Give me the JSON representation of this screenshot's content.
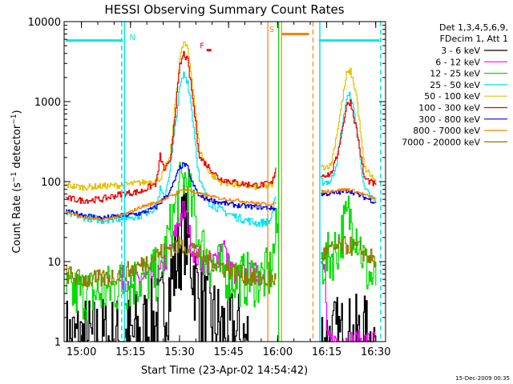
{
  "chart_data": {
    "type": "line",
    "title": "HESSI Observing Summary Count Rates",
    "xlabel": "Start Time (23-Apr-02 14:54:42)",
    "ylabel": "Count Rate (s⁻¹ detector⁻¹)",
    "ylabel_parts": [
      "Count Rate (s",
      "−1",
      " detector",
      "−1",
      ")"
    ],
    "xlim": [
      14.9117,
      16.55
    ],
    "ylim": [
      1,
      10000
    ],
    "yscale": "log",
    "x_ticks": [
      {
        "value": 15.0,
        "label": "15:00"
      },
      {
        "value": 15.25,
        "label": "15:15"
      },
      {
        "value": 15.5,
        "label": "15:30"
      },
      {
        "value": 15.75,
        "label": "15:45"
      },
      {
        "value": 16.0,
        "label": "16:00"
      },
      {
        "value": 16.25,
        "label": "16:15"
      },
      {
        "value": 16.5,
        "label": "16:30"
      }
    ],
    "y_ticks": [
      {
        "value": 1,
        "label": "1"
      },
      {
        "value": 10,
        "label": "10"
      },
      {
        "value": 100,
        "label": "100"
      },
      {
        "value": 1000,
        "label": "1000"
      },
      {
        "value": 10000,
        "label": "10000"
      }
    ],
    "legend_header": [
      "Det 1,3,4,5,6,9,",
      "FDecim 1, Att 1"
    ],
    "legend_placement": "right of plot, top",
    "grid": false,
    "series": [
      {
        "name": "3 - 6 keV",
        "color": "#000000",
        "noise": 0.6,
        "segments": [
          [
            [
              14.92,
              1
            ],
            [
              15.2,
              1
            ],
            [
              15.3,
              1.2
            ],
            [
              15.4,
              2
            ],
            [
              15.45,
              5
            ],
            [
              15.5,
              15
            ],
            [
              15.52,
              28
            ],
            [
              15.54,
              20
            ],
            [
              15.56,
              10
            ],
            [
              15.6,
              3
            ],
            [
              15.65,
              2
            ],
            [
              15.7,
              1.5
            ],
            [
              15.78,
              1.2
            ],
            [
              15.85,
              1
            ]
          ],
          [
            [
              16.22,
              1
            ],
            [
              16.35,
              1
            ],
            [
              16.5,
              1
            ]
          ]
        ]
      },
      {
        "name": "6 - 12 keV",
        "color": "#ff00ff",
        "noise": 0.15,
        "segments": [
          [
            [
              15.2,
              6
            ],
            [
              15.3,
              6
            ],
            [
              15.4,
              7
            ],
            [
              15.45,
              14
            ],
            [
              15.5,
              35
            ],
            [
              15.52,
              45
            ],
            [
              15.54,
              30
            ],
            [
              15.56,
              15
            ],
            [
              15.6,
              10
            ],
            [
              15.65,
              9
            ],
            [
              15.7,
              12
            ],
            [
              15.72,
              20
            ],
            [
              15.74,
              10
            ],
            [
              15.78,
              7
            ],
            [
              15.85,
              7
            ],
            [
              15.96,
              7
            ]
          ],
          [
            [
              16.22,
              8
            ],
            [
              16.24,
              8
            ],
            [
              16.25,
              1
            ],
            [
              16.5,
              1
            ]
          ]
        ]
      },
      {
        "name": "12 - 25 keV",
        "color": "#00dd00",
        "noise": 0.35,
        "segments": [
          [
            [
              14.92,
              4
            ],
            [
              15.1,
              4
            ],
            [
              15.2,
              5
            ],
            [
              15.3,
              6
            ],
            [
              15.4,
              7
            ],
            [
              15.45,
              25
            ],
            [
              15.5,
              80
            ],
            [
              15.52,
              110
            ],
            [
              15.54,
              90
            ],
            [
              15.56,
              50
            ],
            [
              15.6,
              18
            ],
            [
              15.65,
              10
            ],
            [
              15.7,
              8
            ],
            [
              15.8,
              6
            ],
            [
              15.9,
              6
            ],
            [
              15.96,
              7
            ],
            [
              16.0,
              30
            ]
          ],
          [
            [
              16.22,
              10
            ],
            [
              16.25,
              10
            ],
            [
              16.3,
              15
            ],
            [
              16.36,
              38
            ],
            [
              16.4,
              25
            ],
            [
              16.45,
              8
            ],
            [
              16.5,
              5
            ]
          ]
        ]
      },
      {
        "name": "25 - 50 keV",
        "color": "#00e5ee",
        "noise": 0.05,
        "segments": [
          [
            [
              14.92,
              40
            ],
            [
              15.1,
              33
            ],
            [
              15.3,
              38
            ],
            [
              15.38,
              48
            ],
            [
              15.4,
              80
            ],
            [
              15.42,
              60
            ],
            [
              15.45,
              140
            ],
            [
              15.5,
              1500
            ],
            [
              15.52,
              2200
            ],
            [
              15.54,
              1800
            ],
            [
              15.56,
              800
            ],
            [
              15.6,
              100
            ],
            [
              15.65,
              55
            ],
            [
              15.7,
              45
            ],
            [
              15.8,
              35
            ],
            [
              15.9,
              30
            ],
            [
              15.96,
              32
            ],
            [
              15.99,
              65
            ]
          ],
          [
            [
              16.22,
              100
            ],
            [
              16.27,
              100
            ],
            [
              16.3,
              180
            ],
            [
              16.35,
              1100
            ],
            [
              16.37,
              1200
            ],
            [
              16.4,
              500
            ],
            [
              16.44,
              80
            ],
            [
              16.5,
              55
            ]
          ]
        ]
      },
      {
        "name": "50 - 100 keV",
        "color": "#e5c000",
        "noise": 0.04,
        "segments": [
          [
            [
              14.92,
              90
            ],
            [
              15.0,
              85
            ],
            [
              15.2,
              90
            ],
            [
              15.35,
              100
            ],
            [
              15.4,
              110
            ],
            [
              15.45,
              200
            ],
            [
              15.5,
              3500
            ],
            [
              15.52,
              5500
            ],
            [
              15.54,
              4500
            ],
            [
              15.56,
              2000
            ],
            [
              15.6,
              250
            ],
            [
              15.65,
              130
            ],
            [
              15.7,
              100
            ],
            [
              15.8,
              90
            ],
            [
              15.9,
              85
            ],
            [
              15.97,
              90
            ],
            [
              15.99,
              140
            ]
          ],
          [
            [
              16.22,
              150
            ],
            [
              16.27,
              160
            ],
            [
              16.3,
              400
            ],
            [
              16.35,
              2200
            ],
            [
              16.37,
              2400
            ],
            [
              16.4,
              1200
            ],
            [
              16.44,
              150
            ],
            [
              16.5,
              100
            ]
          ]
        ]
      },
      {
        "name": "100 - 300 keV",
        "color": "#ee0000",
        "noise": 0.04,
        "segments": [
          [
            [
              14.92,
              62
            ],
            [
              15.0,
              58
            ],
            [
              15.1,
              60
            ],
            [
              15.2,
              70
            ],
            [
              15.3,
              75
            ],
            [
              15.38,
              95
            ],
            [
              15.4,
              210
            ],
            [
              15.42,
              140
            ],
            [
              15.45,
              170
            ],
            [
              15.5,
              2800
            ],
            [
              15.52,
              4000
            ],
            [
              15.54,
              3200
            ],
            [
              15.56,
              1400
            ],
            [
              15.6,
              200
            ],
            [
              15.65,
              150
            ],
            [
              15.7,
              110
            ],
            [
              15.8,
              95
            ],
            [
              15.9,
              90
            ],
            [
              15.97,
              95
            ],
            [
              15.99,
              150
            ]
          ],
          [
            [
              16.22,
              120
            ],
            [
              16.27,
              125
            ],
            [
              16.3,
              200
            ],
            [
              16.35,
              900
            ],
            [
              16.37,
              1000
            ],
            [
              16.4,
              450
            ],
            [
              16.44,
              110
            ],
            [
              16.5,
              90
            ]
          ]
        ]
      },
      {
        "name": "300 - 800 keV",
        "color": "#0000ee",
        "noise": 0.03,
        "segments": [
          [
            [
              14.92,
              42
            ],
            [
              15.1,
              35
            ],
            [
              15.3,
              40
            ],
            [
              15.38,
              48
            ],
            [
              15.45,
              75
            ],
            [
              15.5,
              150
            ],
            [
              15.52,
              165
            ],
            [
              15.54,
              150
            ],
            [
              15.56,
              100
            ],
            [
              15.6,
              65
            ],
            [
              15.7,
              55
            ],
            [
              15.8,
              50
            ],
            [
              15.9,
              48
            ],
            [
              15.99,
              46
            ]
          ],
          [
            [
              16.22,
              70
            ],
            [
              16.3,
              72
            ],
            [
              16.36,
              78
            ],
            [
              16.4,
              70
            ],
            [
              16.5,
              55
            ]
          ]
        ]
      },
      {
        "name": "800 - 7000 keV",
        "color": "#ff8000",
        "noise": 0.02,
        "segments": [
          [
            [
              14.92,
              42
            ],
            [
              15.0,
              36
            ],
            [
              15.1,
              33
            ],
            [
              15.2,
              37
            ],
            [
              15.3,
              48
            ],
            [
              15.38,
              55
            ],
            [
              15.45,
              65
            ],
            [
              15.5,
              75
            ],
            [
              15.52,
              80
            ],
            [
              15.54,
              78
            ],
            [
              15.6,
              70
            ],
            [
              15.7,
              62
            ],
            [
              15.8,
              58
            ],
            [
              15.9,
              53
            ],
            [
              15.99,
              52
            ]
          ],
          [
            [
              16.22,
              75
            ],
            [
              16.3,
              78
            ],
            [
              16.36,
              80
            ],
            [
              16.42,
              72
            ],
            [
              16.5,
              60
            ]
          ]
        ]
      },
      {
        "name": "7000 - 20000 keV",
        "color": "#8b7d00",
        "noise": 0.12,
        "segments": [
          [
            [
              14.92,
              7
            ],
            [
              15.0,
              6
            ],
            [
              15.1,
              6
            ],
            [
              15.2,
              7
            ],
            [
              15.3,
              9
            ],
            [
              15.38,
              12
            ],
            [
              15.45,
              15
            ],
            [
              15.52,
              16
            ],
            [
              15.56,
              15
            ],
            [
              15.6,
              12
            ],
            [
              15.7,
              9
            ],
            [
              15.8,
              7
            ],
            [
              15.9,
              6
            ],
            [
              15.99,
              6
            ]
          ],
          [
            [
              16.22,
              12
            ],
            [
              16.3,
              15
            ],
            [
              16.36,
              16
            ],
            [
              16.42,
              14
            ],
            [
              16.5,
              10
            ]
          ]
        ]
      }
    ],
    "annotations": {
      "night_bars": [
        {
          "x0": 14.92,
          "x1": 15.21,
          "y": 5800,
          "color": "#00e5ee"
        },
        {
          "x0": 16.21,
          "x1": 16.52,
          "y": 5800,
          "color": "#00e5ee"
        }
      ],
      "saa_bar": {
        "x0": 16.02,
        "x1": 16.16,
        "y": 7000,
        "color": "#ff8000"
      },
      "markers": [
        {
          "text": "N",
          "x": 15.26,
          "y": 5900,
          "color": "#00e5ee"
        },
        {
          "text": "S",
          "x": 15.97,
          "y": 7400,
          "color": "#ff8000"
        },
        {
          "text": "F",
          "x": 15.615,
          "y": 4600,
          "color": "#ee0000"
        }
      ],
      "flare_tick": {
        "x": 15.65,
        "y": 4400,
        "color": "#ee0000"
      },
      "vlines": [
        {
          "x": 15.205,
          "style": "dashed",
          "color": "#00e5ee"
        },
        {
          "x": 15.22,
          "style": "solid",
          "color": "#00e5ee"
        },
        {
          "x": 16.215,
          "style": "solid",
          "color": "#00e5ee"
        },
        {
          "x": 16.525,
          "style": "dashed",
          "color": "#00e5ee"
        },
        {
          "x": 15.95,
          "style": "solid",
          "color": "#ff8000"
        },
        {
          "x": 16.02,
          "style": "solid",
          "color": "#ff8000"
        },
        {
          "x": 16.18,
          "style": "dashed",
          "color": "#ff8000"
        },
        {
          "x": 16.005,
          "style": "solid",
          "color": "#00dd00"
        }
      ]
    }
  },
  "footer": {
    "timestamp": "15-Dec-2009 00:35"
  }
}
